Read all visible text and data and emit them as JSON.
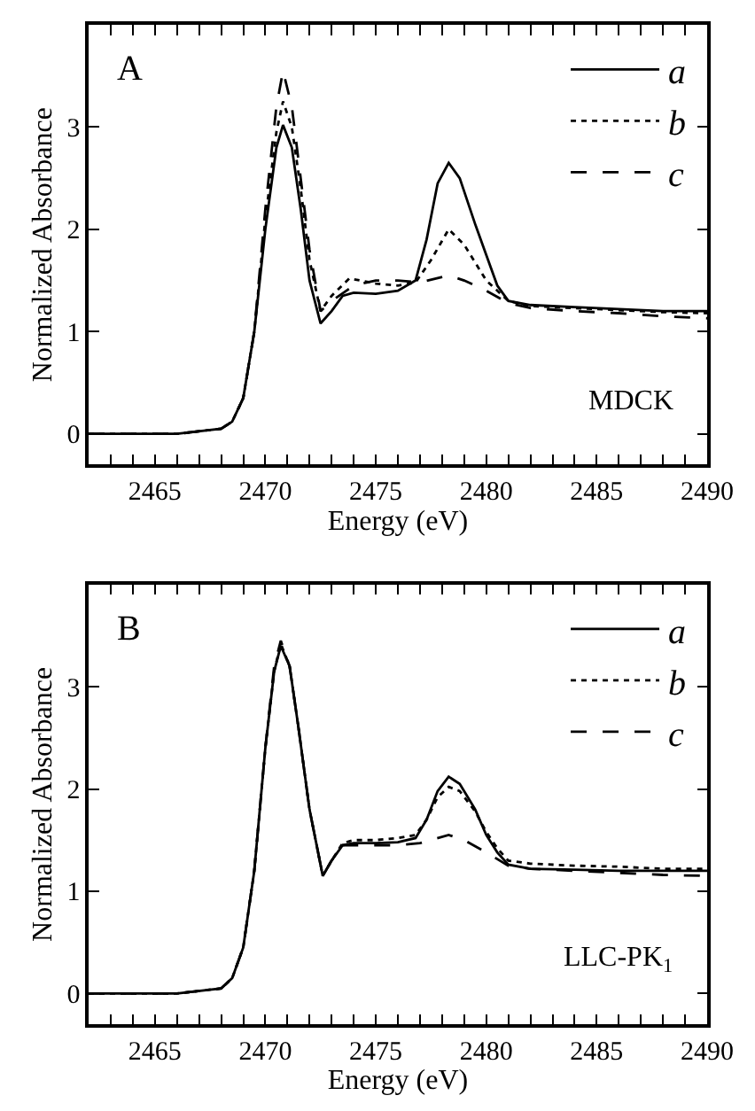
{
  "chart_data": [
    {
      "type": "line",
      "xlabel": "Energy (eV)",
      "ylabel": "Normalized Absorbance",
      "xlim": [
        2462,
        2490
      ],
      "ylim": [
        -0.3,
        4.0
      ],
      "xticks": [
        {
          "value": 2463,
          "label": null
        },
        {
          "value": 2464,
          "label": null
        },
        2465,
        {
          "value": 2466,
          "label": null
        },
        {
          "value": 2467,
          "label": null
        },
        {
          "value": 2468,
          "label": null
        },
        {
          "value": 2469,
          "label": null
        },
        2470,
        {
          "value": 2471,
          "label": null
        },
        {
          "value": 2472,
          "label": null
        },
        {
          "value": 2473,
          "label": null
        },
        {
          "value": 2474,
          "label": null
        },
        2475,
        {
          "value": 2476,
          "label": null
        },
        {
          "value": 2477,
          "label": null
        },
        {
          "value": 2478,
          "label": null
        },
        {
          "value": 2479,
          "label": null
        },
        2480,
        {
          "value": 2481,
          "label": null
        },
        {
          "value": 2482,
          "label": null
        },
        {
          "value": 2483,
          "label": null
        },
        {
          "value": 2484,
          "label": null
        },
        2485,
        {
          "value": 2486,
          "label": null
        },
        {
          "value": 2487,
          "label": null
        },
        {
          "value": 2488,
          "label": null
        },
        {
          "value": 2489,
          "label": null
        },
        2490
      ],
      "yticks": [
        0,
        1,
        2,
        3
      ],
      "legend": "top right",
      "annotations": [
        "A",
        "MDCK"
      ],
      "series": [
        {
          "name": "a",
          "color": "#000000",
          "line_style": "solid",
          "x": [
            2462,
            2466,
            2468,
            2468.5,
            2469,
            2469.5,
            2470,
            2470.5,
            2470.8,
            2471.2,
            2471.6,
            2472,
            2472.5,
            2473,
            2473.5,
            2474,
            2475,
            2476,
            2476.8,
            2477.3,
            2477.8,
            2478.3,
            2478.8,
            2479.5,
            2480,
            2480.5,
            2481,
            2482,
            2484,
            2486,
            2488,
            2490
          ],
          "values": [
            0,
            0,
            0.05,
            0.12,
            0.35,
            1.0,
            2.0,
            2.8,
            3.02,
            2.8,
            2.2,
            1.5,
            1.08,
            1.2,
            1.35,
            1.38,
            1.37,
            1.4,
            1.5,
            1.9,
            2.45,
            2.65,
            2.5,
            2.05,
            1.75,
            1.45,
            1.3,
            1.26,
            1.24,
            1.22,
            1.2,
            1.2
          ]
        },
        {
          "name": "b",
          "color": "#000000",
          "line_style": "dotted",
          "x": [
            2462,
            2466,
            2468,
            2468.5,
            2469,
            2469.5,
            2470,
            2470.5,
            2470.8,
            2471.2,
            2471.6,
            2472,
            2472.5,
            2473,
            2473.8,
            2475,
            2476,
            2476.8,
            2477.5,
            2478.3,
            2479,
            2480,
            2481,
            2482,
            2484,
            2486,
            2488,
            2490
          ],
          "values": [
            0,
            0,
            0.05,
            0.12,
            0.35,
            1.0,
            2.1,
            2.95,
            3.25,
            3.0,
            2.4,
            1.7,
            1.2,
            1.35,
            1.52,
            1.47,
            1.45,
            1.48,
            1.7,
            2.0,
            1.85,
            1.5,
            1.3,
            1.25,
            1.23,
            1.21,
            1.19,
            1.18
          ]
        },
        {
          "name": "c",
          "color": "#000000",
          "line_style": "dashed",
          "x": [
            2462,
            2466,
            2468,
            2468.5,
            2469,
            2469.5,
            2470,
            2470.5,
            2470.8,
            2471.2,
            2471.6,
            2472,
            2472.5,
            2473,
            2474,
            2475,
            2476,
            2477,
            2478.3,
            2479,
            2480,
            2481,
            2482,
            2484,
            2486,
            2488,
            2490
          ],
          "values": [
            0,
            0,
            0.05,
            0.12,
            0.35,
            1.0,
            2.2,
            3.2,
            3.55,
            3.2,
            2.5,
            1.8,
            1.2,
            1.3,
            1.45,
            1.5,
            1.5,
            1.48,
            1.55,
            1.5,
            1.4,
            1.28,
            1.23,
            1.2,
            1.18,
            1.15,
            1.13
          ]
        }
      ]
    },
    {
      "type": "line",
      "xlabel": "Energy (eV)",
      "ylabel": "Normalized Absorbance",
      "xlim": [
        2462,
        2490
      ],
      "ylim": [
        -0.3,
        4.0
      ],
      "xticks": [
        {
          "value": 2463,
          "label": null
        },
        {
          "value": 2464,
          "label": null
        },
        2465,
        {
          "value": 2466,
          "label": null
        },
        {
          "value": 2467,
          "label": null
        },
        {
          "value": 2468,
          "label": null
        },
        {
          "value": 2469,
          "label": null
        },
        2470,
        {
          "value": 2471,
          "label": null
        },
        {
          "value": 2472,
          "label": null
        },
        {
          "value": 2473,
          "label": null
        },
        {
          "value": 2474,
          "label": null
        },
        2475,
        {
          "value": 2476,
          "label": null
        },
        {
          "value": 2477,
          "label": null
        },
        {
          "value": 2478,
          "label": null
        },
        {
          "value": 2479,
          "label": null
        },
        2480,
        {
          "value": 2481,
          "label": null
        },
        {
          "value": 2482,
          "label": null
        },
        {
          "value": 2483,
          "label": null
        },
        {
          "value": 2484,
          "label": null
        },
        2485,
        {
          "value": 2486,
          "label": null
        },
        {
          "value": 2487,
          "label": null
        },
        {
          "value": 2488,
          "label": null
        },
        {
          "value": 2489,
          "label": null
        },
        2490
      ],
      "yticks": [
        0,
        1,
        2,
        3
      ],
      "legend": "top right",
      "annotations": [
        "B",
        "LLC-PK$_{1}$"
      ],
      "series": [
        {
          "name": "a",
          "color": "#000000",
          "line_style": "solid",
          "x": [
            2462,
            2466,
            2468,
            2468.5,
            2469,
            2469.5,
            2470,
            2470.4,
            2470.7,
            2471.1,
            2471.5,
            2472,
            2472.6,
            2473,
            2473.5,
            2474,
            2475,
            2476,
            2476.8,
            2477.3,
            2477.8,
            2478.3,
            2478.8,
            2479.5,
            2480,
            2480.5,
            2481,
            2482,
            2484,
            2486,
            2488,
            2490
          ],
          "values": [
            0,
            0,
            0.05,
            0.15,
            0.45,
            1.2,
            2.4,
            3.15,
            3.4,
            3.2,
            2.6,
            1.8,
            1.15,
            1.3,
            1.45,
            1.47,
            1.47,
            1.48,
            1.52,
            1.7,
            1.98,
            2.12,
            2.05,
            1.8,
            1.55,
            1.38,
            1.26,
            1.22,
            1.21,
            1.2,
            1.2,
            1.2
          ]
        },
        {
          "name": "b",
          "color": "#000000",
          "line_style": "dotted",
          "x": [
            2462,
            2466,
            2468,
            2468.5,
            2469,
            2469.5,
            2470,
            2470.4,
            2470.7,
            2471.1,
            2471.5,
            2472,
            2472.6,
            2473,
            2473.5,
            2474,
            2475,
            2476,
            2476.8,
            2477.3,
            2477.8,
            2478.3,
            2478.8,
            2479.5,
            2480,
            2480.5,
            2481,
            2482,
            2484,
            2486,
            2488,
            2490
          ],
          "values": [
            0,
            0,
            0.05,
            0.15,
            0.45,
            1.2,
            2.4,
            3.15,
            3.42,
            3.2,
            2.6,
            1.8,
            1.15,
            1.3,
            1.47,
            1.5,
            1.5,
            1.52,
            1.55,
            1.7,
            1.92,
            2.02,
            1.98,
            1.78,
            1.58,
            1.42,
            1.3,
            1.27,
            1.25,
            1.24,
            1.22,
            1.22
          ]
        },
        {
          "name": "c",
          "color": "#000000",
          "line_style": "dashed",
          "x": [
            2462,
            2466,
            2468,
            2468.5,
            2469,
            2469.5,
            2470,
            2470.4,
            2470.7,
            2471.1,
            2471.5,
            2472,
            2472.6,
            2473,
            2473.5,
            2474,
            2475,
            2476,
            2477,
            2478.3,
            2479,
            2480,
            2481,
            2482,
            2484,
            2486,
            2488,
            2490
          ],
          "values": [
            0,
            0,
            0.05,
            0.15,
            0.45,
            1.2,
            2.4,
            3.2,
            3.45,
            3.2,
            2.6,
            1.8,
            1.15,
            1.3,
            1.45,
            1.45,
            1.45,
            1.45,
            1.47,
            1.55,
            1.5,
            1.38,
            1.25,
            1.22,
            1.2,
            1.18,
            1.16,
            1.15
          ]
        }
      ]
    }
  ]
}
